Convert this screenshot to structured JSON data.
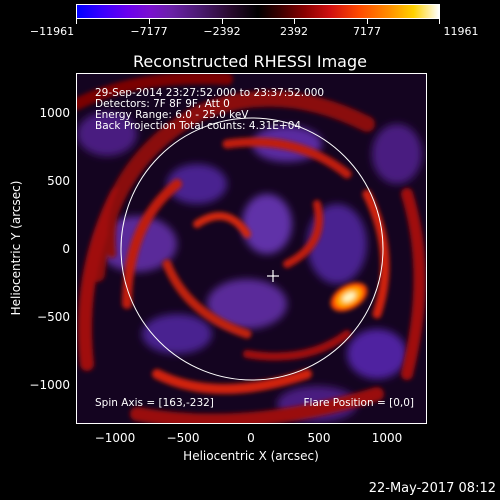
{
  "colorbar": {
    "ticks": [
      "−11961",
      "−7177",
      "−2392",
      "2392",
      "7177",
      "11961"
    ]
  },
  "title": "Reconstructed RHESSI Image",
  "annotations": {
    "time_range": "29-Sep-2014 23:27:52.000 to 23:37:52.000",
    "detectors": "Detectors: 7F 8F 9F, Att 0",
    "energy": "Energy Range: 6.0 - 25.0 keV",
    "method": "Back Projection   Total counts: 4.31E+04",
    "spin_axis": "Spin Axis = [163,-232]",
    "flare_position": "Flare Position = [0,0]"
  },
  "axes": {
    "xlabel": "Heliocentric X (arcsec)",
    "ylabel": "Heliocentric Y (arcsec)",
    "xticks": [
      "−1000",
      "−500",
      "0",
      "500",
      "1000"
    ],
    "yticks": [
      "1000",
      "500",
      "0",
      "−500",
      "−1000"
    ]
  },
  "footer": {
    "date": "22-May-2017 08:12"
  },
  "colors": {
    "background": "#000000",
    "text": "#ffffff"
  }
}
